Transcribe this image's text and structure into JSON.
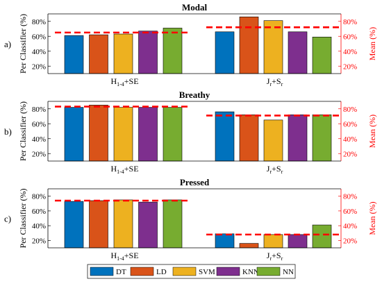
{
  "figure": {
    "legend": [
      {
        "label": "DT",
        "color": "#0072BD"
      },
      {
        "label": "LD",
        "color": "#D95319"
      },
      {
        "label": "SVM",
        "color": "#EDB120"
      },
      {
        "label": "KNN",
        "color": "#7E2F8E"
      },
      {
        "label": "NN",
        "color": "#77AC30"
      }
    ],
    "mean_line_color": "#FF0000",
    "mean_line_style": "dashed"
  },
  "chart_data": [
    {
      "type": "bar",
      "panel_label": "a)",
      "title": "Modal",
      "ylabel": "Per Classifier (%)",
      "ylabel_right": "Mean (%)",
      "categories": [
        {
          "base": "H",
          "sub": "1-4",
          "rest": "+SE"
        },
        {
          "base": "J",
          "sub": "r",
          "rest": "+S",
          "sub2": "r"
        }
      ],
      "ylim": [
        10,
        90
      ],
      "yticks": [
        "20%",
        "40%",
        "60%",
        "80%"
      ],
      "yticks_right": [
        "20%",
        "40%",
        "60%",
        "80%"
      ],
      "series": [
        {
          "name": "DT",
          "values": [
            61,
            66
          ]
        },
        {
          "name": "LD",
          "values": [
            62,
            86
          ]
        },
        {
          "name": "SVM",
          "values": [
            63,
            81
          ]
        },
        {
          "name": "KNN",
          "values": [
            67,
            66
          ]
        },
        {
          "name": "NN",
          "values": [
            71,
            59
          ]
        }
      ],
      "means": [
        65,
        72
      ],
      "grid": false
    },
    {
      "type": "bar",
      "panel_label": "b)",
      "title": "Breathy",
      "ylabel": "Per Classifier (%)",
      "ylabel_right": "Mean (%)",
      "categories": [
        {
          "base": "H",
          "sub": "1-4",
          "rest": "+SE"
        },
        {
          "base": "J",
          "sub": "r",
          "rest": "+S",
          "sub2": "r"
        }
      ],
      "ylim": [
        10,
        90
      ],
      "yticks": [
        "20%",
        "40%",
        "60%",
        "80%"
      ],
      "yticks_right": [
        "20%",
        "40%",
        "60%",
        "80%"
      ],
      "series": [
        {
          "name": "DT",
          "values": [
            82,
            76
          ]
        },
        {
          "name": "LD",
          "values": [
            85,
            72
          ]
        },
        {
          "name": "SVM",
          "values": [
            82,
            65
          ]
        },
        {
          "name": "KNN",
          "values": [
            82,
            72
          ]
        },
        {
          "name": "NN",
          "values": [
            82,
            72
          ]
        }
      ],
      "means": [
        83,
        71
      ],
      "grid": false
    },
    {
      "type": "bar",
      "panel_label": "c)",
      "title": "Pressed",
      "ylabel": "Per Classifier (%)",
      "ylabel_right": "Mean (%)",
      "categories": [
        {
          "base": "H",
          "sub": "1-4",
          "rest": "+SE"
        },
        {
          "base": "J",
          "sub": "r",
          "rest": "+S",
          "sub2": "r"
        }
      ],
      "ylim": [
        10,
        90
      ],
      "yticks": [
        "20%",
        "40%",
        "60%",
        "80%"
      ],
      "yticks_right": [
        "20%",
        "40%",
        "60%",
        "80%"
      ],
      "series": [
        {
          "name": "DT",
          "values": [
            73,
            29
          ]
        },
        {
          "name": "LD",
          "values": [
            74,
            16
          ]
        },
        {
          "name": "SVM",
          "values": [
            75,
            28
          ]
        },
        {
          "name": "KNN",
          "values": [
            72,
            28
          ]
        },
        {
          "name": "NN",
          "values": [
            75,
            41
          ]
        }
      ],
      "means": [
        74,
        28
      ],
      "grid": false
    }
  ]
}
